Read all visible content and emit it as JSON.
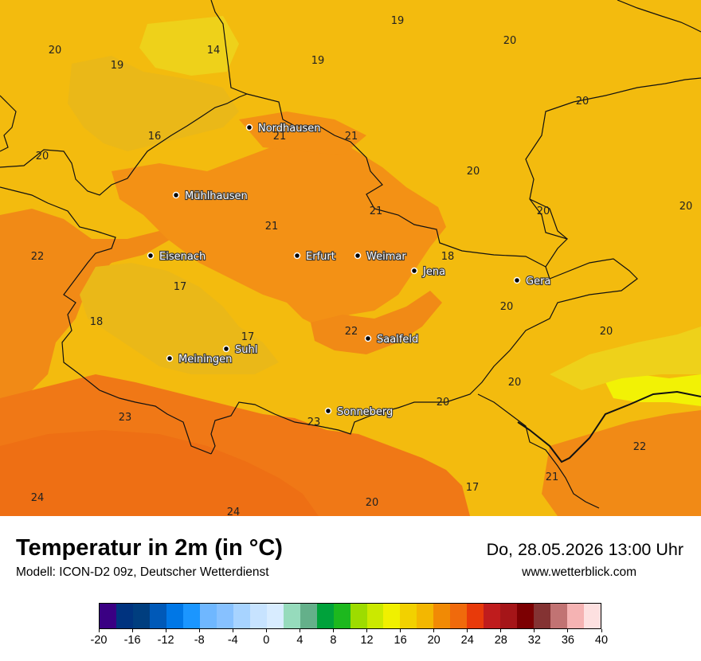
{
  "map": {
    "colors": {
      "base": "#f3bb0e",
      "t16": "#efc10f",
      "t17": "#eab818",
      "t18": "#f3bd12",
      "t19": "#ecc70e",
      "t20": "#f3bb0e",
      "t21": "#f39115",
      "t22": "#f18a16",
      "t23": "#f07816",
      "t24": "#ee6f14",
      "cool": "#eed11a",
      "yellow": "#f2f205",
      "border": "#111111"
    },
    "cities": [
      {
        "name": "Nordhausen"
      },
      {
        "name": "Mühlhausen"
      },
      {
        "name": "Eisenach"
      },
      {
        "name": "Erfurt"
      },
      {
        "name": "Weimar"
      },
      {
        "name": "Jena"
      },
      {
        "name": "Gera"
      },
      {
        "name": "Saalfeld"
      },
      {
        "name": "Suhl"
      },
      {
        "name": "Meiningen"
      },
      {
        "name": "Sonneberg"
      }
    ],
    "temperatures": [
      "19",
      "20",
      "20",
      "14",
      "19",
      "19",
      "16",
      "20",
      "21",
      "21",
      "20",
      "20",
      "21",
      "21",
      "20",
      "22",
      "18",
      "17",
      "20",
      "20",
      "18",
      "17",
      "22",
      "20",
      "20",
      "23",
      "23",
      "20",
      "22",
      "21",
      "17",
      "24",
      "24",
      "20"
    ]
  },
  "footer": {
    "title": "Temperatur in 2m (in °C)",
    "subtitle": "Modell: ICON-D2 09z, Deutscher Wetterdienst",
    "datetime": "Do, 28.05.2026 13:00 Uhr",
    "website": "www.wetterblick.com"
  },
  "colorbar": {
    "colors": [
      "#3a0083",
      "#00337f",
      "#003e7f",
      "#0059b8",
      "#0077e6",
      "#1b96ff",
      "#6fb7ff",
      "#87c1ff",
      "#a7d3ff",
      "#c7e3ff",
      "#d8ecff",
      "#96dbbc",
      "#64b08a",
      "#00a23b",
      "#1db81e",
      "#9ddc00",
      "#cbe900",
      "#f0f000",
      "#f2d100",
      "#f3b701",
      "#f18a05",
      "#f06a0c",
      "#e83a0a",
      "#bf1c1d",
      "#a51518",
      "#7c0002",
      "#843333",
      "#c17373",
      "#f5b3b3",
      "#fde0e0"
    ],
    "tick_labels": [
      "-20",
      "-16",
      "-12",
      "-8",
      "-4",
      "0",
      "4",
      "8",
      "12",
      "16",
      "20",
      "24",
      "28",
      "32",
      "36",
      "40"
    ],
    "min": -20,
    "max": 40
  }
}
